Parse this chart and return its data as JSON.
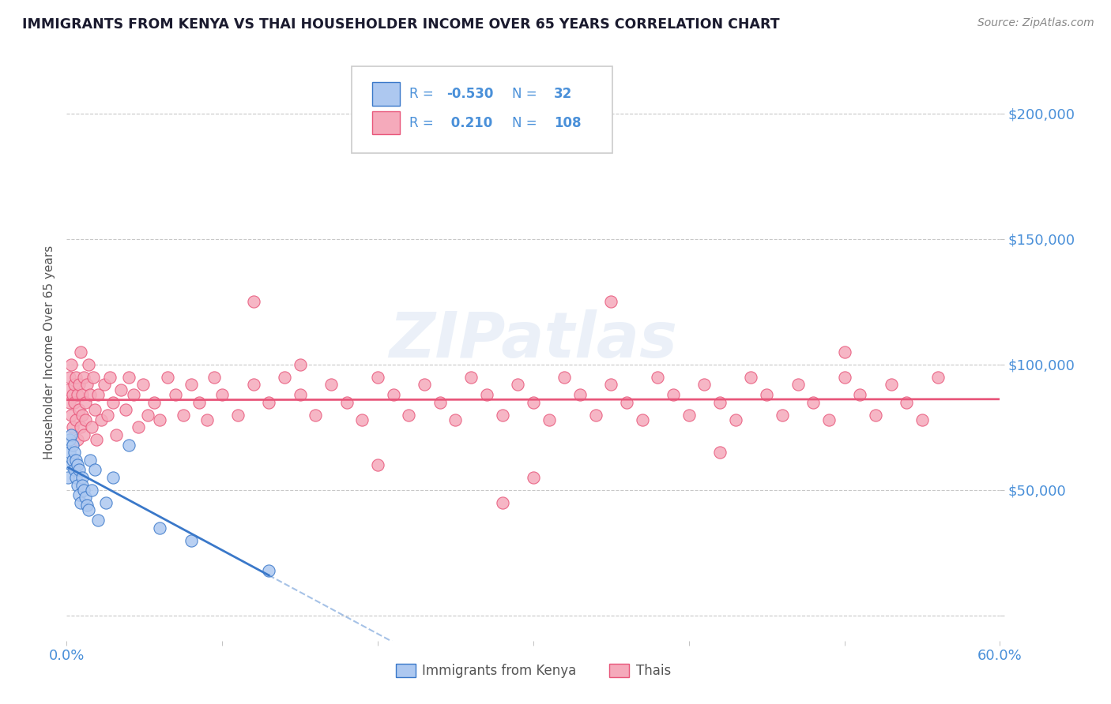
{
  "title": "IMMIGRANTS FROM KENYA VS THAI HOUSEHOLDER INCOME OVER 65 YEARS CORRELATION CHART",
  "source": "Source: ZipAtlas.com",
  "ylabel": "Householder Income Over 65 years",
  "xlim": [
    0.0,
    0.6
  ],
  "ylim": [
    -10000,
    220000
  ],
  "yticks": [
    0,
    50000,
    100000,
    150000,
    200000
  ],
  "ytick_labels": [
    "",
    "$50,000",
    "$100,000",
    "$150,000",
    "$200,000"
  ],
  "xticks": [
    0.0,
    0.1,
    0.2,
    0.3,
    0.4,
    0.5,
    0.6
  ],
  "xtick_labels": [
    "0.0%",
    "",
    "",
    "",
    "",
    "",
    "60.0%"
  ],
  "kenya_R": -0.53,
  "kenya_N": 32,
  "thai_R": 0.21,
  "thai_N": 108,
  "kenya_color": "#adc8f0",
  "thai_color": "#f5aabb",
  "kenya_line_color": "#3a78c9",
  "thai_line_color": "#e8567a",
  "kenya_scatter_x": [
    0.001,
    0.002,
    0.002,
    0.003,
    0.003,
    0.004,
    0.004,
    0.005,
    0.005,
    0.006,
    0.006,
    0.007,
    0.007,
    0.008,
    0.008,
    0.009,
    0.01,
    0.01,
    0.011,
    0.012,
    0.013,
    0.014,
    0.015,
    0.016,
    0.018,
    0.02,
    0.025,
    0.03,
    0.04,
    0.06,
    0.08,
    0.13
  ],
  "kenya_scatter_y": [
    55000,
    65000,
    70000,
    60000,
    72000,
    62000,
    68000,
    58000,
    65000,
    55000,
    62000,
    52000,
    60000,
    48000,
    58000,
    45000,
    55000,
    52000,
    50000,
    47000,
    44000,
    42000,
    62000,
    50000,
    58000,
    38000,
    45000,
    55000,
    68000,
    35000,
    30000,
    18000
  ],
  "thai_scatter_x": [
    0.001,
    0.002,
    0.002,
    0.003,
    0.003,
    0.004,
    0.004,
    0.005,
    0.005,
    0.006,
    0.006,
    0.007,
    0.007,
    0.008,
    0.008,
    0.009,
    0.009,
    0.01,
    0.01,
    0.011,
    0.011,
    0.012,
    0.012,
    0.013,
    0.014,
    0.015,
    0.016,
    0.017,
    0.018,
    0.019,
    0.02,
    0.022,
    0.024,
    0.026,
    0.028,
    0.03,
    0.032,
    0.035,
    0.038,
    0.04,
    0.043,
    0.046,
    0.049,
    0.052,
    0.056,
    0.06,
    0.065,
    0.07,
    0.075,
    0.08,
    0.085,
    0.09,
    0.095,
    0.1,
    0.11,
    0.12,
    0.13,
    0.14,
    0.15,
    0.16,
    0.17,
    0.18,
    0.19,
    0.2,
    0.21,
    0.22,
    0.23,
    0.24,
    0.25,
    0.26,
    0.27,
    0.28,
    0.29,
    0.3,
    0.31,
    0.32,
    0.33,
    0.34,
    0.35,
    0.36,
    0.37,
    0.38,
    0.39,
    0.4,
    0.41,
    0.42,
    0.43,
    0.44,
    0.45,
    0.46,
    0.47,
    0.48,
    0.49,
    0.5,
    0.51,
    0.52,
    0.53,
    0.54,
    0.55,
    0.56,
    0.12,
    0.2,
    0.28,
    0.35,
    0.42,
    0.3,
    0.5,
    0.15
  ],
  "thai_scatter_y": [
    90000,
    85000,
    95000,
    80000,
    100000,
    88000,
    75000,
    92000,
    85000,
    78000,
    95000,
    88000,
    70000,
    82000,
    92000,
    75000,
    105000,
    80000,
    88000,
    72000,
    95000,
    85000,
    78000,
    92000,
    100000,
    88000,
    75000,
    95000,
    82000,
    70000,
    88000,
    78000,
    92000,
    80000,
    95000,
    85000,
    72000,
    90000,
    82000,
    95000,
    88000,
    75000,
    92000,
    80000,
    85000,
    78000,
    95000,
    88000,
    80000,
    92000,
    85000,
    78000,
    95000,
    88000,
    80000,
    92000,
    85000,
    95000,
    88000,
    80000,
    92000,
    85000,
    78000,
    95000,
    88000,
    80000,
    92000,
    85000,
    78000,
    95000,
    88000,
    80000,
    92000,
    85000,
    78000,
    95000,
    88000,
    80000,
    92000,
    85000,
    78000,
    95000,
    88000,
    80000,
    92000,
    85000,
    78000,
    95000,
    88000,
    80000,
    92000,
    85000,
    78000,
    95000,
    88000,
    80000,
    92000,
    85000,
    78000,
    95000,
    125000,
    60000,
    45000,
    125000,
    65000,
    55000,
    105000,
    100000
  ],
  "watermark": "ZIPatlas",
  "background_color": "#ffffff",
  "grid_color": "#c8c8c8",
  "title_color": "#1a1a2e",
  "axis_label_color": "#555555",
  "tick_label_color": "#4a90d9",
  "source_color": "#888888",
  "legend_text_color": "#4a90d9"
}
